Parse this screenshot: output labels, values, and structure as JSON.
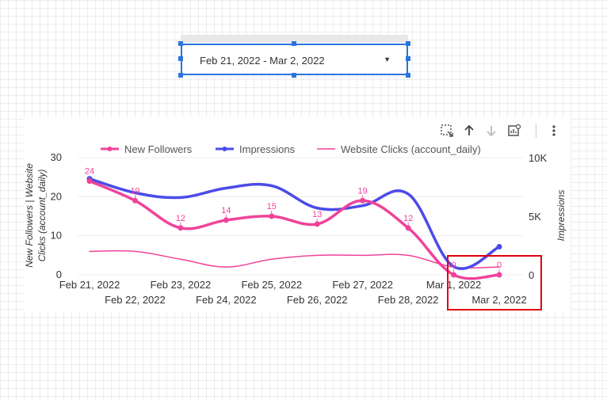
{
  "date_control": {
    "value": "Feb 21, 2022 - Mar 2, 2022"
  },
  "toolbar": {
    "icons": [
      "select-area-icon",
      "sort-ascending-icon",
      "sort-descending-icon",
      "chart-drill-icon",
      "more-vert-icon"
    ]
  },
  "chart_data": {
    "type": "line",
    "categories": [
      "Feb 21, 2022",
      "Feb 22, 2022",
      "Feb 23, 2022",
      "Feb 24, 2022",
      "Feb 25, 2022",
      "Feb 26, 2022",
      "Feb 27, 2022",
      "Feb 28, 2022",
      "Mar 1, 2022",
      "Mar 2, 2022"
    ],
    "series": [
      {
        "name": "New Followers",
        "axis": "left",
        "color": "#f0439a",
        "values": [
          24,
          19,
          12,
          14,
          15,
          13,
          19,
          12,
          0,
          0
        ],
        "labels": [
          "24",
          "19",
          "12",
          "14",
          "15",
          "13",
          "19",
          "12",
          "0",
          "0"
        ]
      },
      {
        "name": "Impressions",
        "axis": "right",
        "color": "#4b4bea",
        "values": [
          8200,
          7000,
          6600,
          7400,
          7600,
          5700,
          5900,
          6900,
          700,
          2400
        ]
      },
      {
        "name": "Website Clicks (account_daily)",
        "axis": "left",
        "color": "#f0439a",
        "values": [
          6,
          6,
          4,
          2,
          4,
          5,
          5,
          5,
          2,
          2
        ]
      }
    ],
    "ylabel_left": "New Followers | Website Clicks (account_daily)",
    "ylabel_right": "Impressions",
    "ylim_left": [
      0,
      30
    ],
    "ylim_right": [
      0,
      10000
    ],
    "yticks_left": [
      "0",
      "10",
      "20",
      "30"
    ],
    "yticks_right": [
      "0",
      "5K",
      "10K"
    ],
    "legend_position": "top"
  }
}
